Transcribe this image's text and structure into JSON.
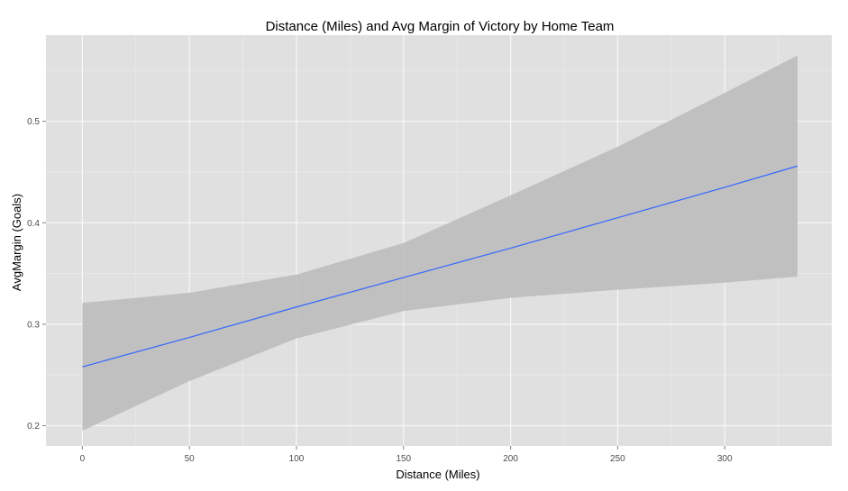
{
  "chart_data": {
    "type": "line",
    "title": "Distance (Miles) and Avg Margin of Victory by Home Team",
    "xlabel": "Distance (Miles)",
    "ylabel": "AvgMargin (Goals)",
    "xlim": [
      -17,
      350
    ],
    "ylim": [
      0.18,
      0.585
    ],
    "x_ticks": [
      0,
      50,
      100,
      150,
      200,
      250,
      300
    ],
    "y_ticks": [
      0.2,
      0.3,
      0.4,
      0.5
    ],
    "grid": true,
    "legend": "none",
    "series": [
      {
        "x": [
          0,
          50,
          100,
          150,
          200,
          250,
          300,
          334
        ],
        "y": [
          0.258,
          0.287,
          0.317,
          0.346,
          0.375,
          0.405,
          0.435,
          0.456
        ],
        "ymin": [
          0.195,
          0.244,
          0.286,
          0.313,
          0.326,
          0.334,
          0.341,
          0.347
        ],
        "ymax": [
          0.321,
          0.331,
          0.349,
          0.38,
          0.427,
          0.475,
          0.528,
          0.565
        ]
      }
    ],
    "colors": {
      "panel": "#e0e0e0",
      "grid_major": "#f7f7f7",
      "grid_minor": "#ebebeb",
      "band": "#bdbdbd",
      "line": "#3366ff"
    }
  }
}
